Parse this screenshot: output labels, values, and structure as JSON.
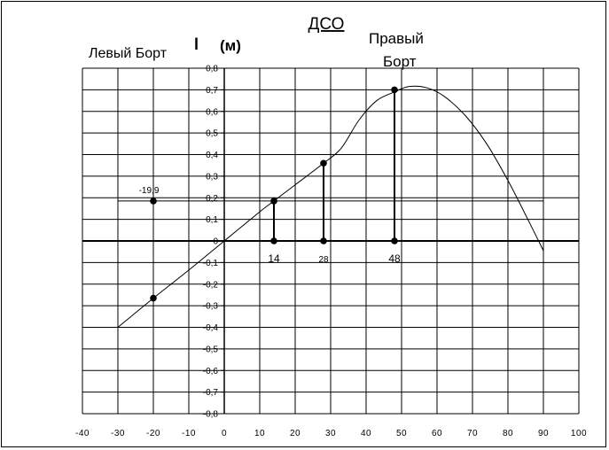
{
  "chart_data": {
    "type": "line",
    "title": "ДСО",
    "ylabel": "l",
    "ylabel_unit": "(м)",
    "left_label": "Левый Борт",
    "right_label_line1": "Правый",
    "right_label_line2": "Борт",
    "xlim": [
      -40,
      100
    ],
    "ylim": [
      -0.8,
      0.8
    ],
    "x_ticks": [
      -40,
      -30,
      -20,
      -10,
      0,
      10,
      20,
      30,
      40,
      50,
      60,
      70,
      80,
      90,
      100
    ],
    "x_tick_labels": [
      "-40",
      "-30",
      "-20",
      "-10",
      "0",
      "10",
      "20",
      "30",
      "40",
      "50",
      "60",
      "70",
      "80",
      "90",
      "100"
    ],
    "y_ticks": [
      0.8,
      0.7,
      0.6,
      0.5,
      0.4,
      0.3,
      0.2,
      0.1,
      0,
      -0.1,
      -0.2,
      -0.3,
      -0.4,
      -0.5,
      -0.6,
      -0.7,
      -0.8
    ],
    "y_tick_labels": [
      "0,8",
      "0,7",
      "0,6",
      "0,5",
      "0,4",
      "0,3",
      "0,2",
      "0,1",
      "0",
      "-0,1",
      "-0,2",
      "-0,3",
      "-0,4",
      "-0,5",
      "-0,6",
      "-0,7",
      "-0,8"
    ],
    "grid": true,
    "series": [
      {
        "x": [
          -30,
          -20,
          -10,
          0,
          10,
          14,
          20,
          28,
          33,
          38,
          43,
          48,
          52,
          57,
          62,
          68,
          74,
          80,
          85,
          90
        ],
        "y": [
          -0.4,
          -0.265,
          -0.135,
          0,
          0.135,
          0.185,
          0.26,
          0.36,
          0.43,
          0.56,
          0.65,
          0.69,
          0.715,
          0.71,
          0.67,
          0.58,
          0.45,
          0.28,
          0.12,
          -0.045
        ]
      }
    ],
    "markers": [
      {
        "x": -20,
        "y": 0.185
      },
      {
        "x": -20,
        "y": -0.265
      },
      {
        "x": 14,
        "y": 0.185
      },
      {
        "x": 14,
        "y": 0
      },
      {
        "x": 28,
        "y": 0.36
      },
      {
        "x": 28,
        "y": 0
      },
      {
        "x": 48,
        "y": 0.7
      },
      {
        "x": 48,
        "y": 0
      }
    ],
    "hline": {
      "y": 0.185,
      "x_from": -30,
      "x_to": 90
    },
    "annotations": [
      {
        "text": "-19,9",
        "x": -20,
        "y": 0.185
      },
      {
        "text": "14",
        "x": 14,
        "y": 0
      },
      {
        "text": "28",
        "x": 28,
        "y": 0
      },
      {
        "text": "48",
        "x": 48,
        "y": 0
      }
    ],
    "colors": {
      "line": "#000000",
      "grid": "#000000",
      "background": "#ffffff"
    }
  }
}
